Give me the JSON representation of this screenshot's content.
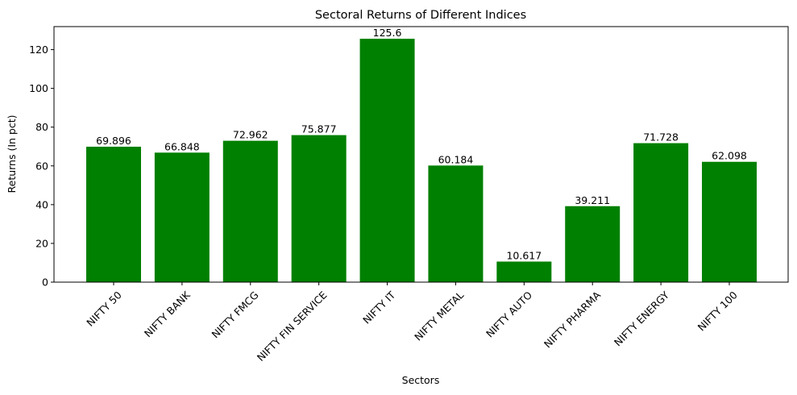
{
  "chart_data": {
    "type": "bar",
    "title": "Sectoral Returns of Different Indices",
    "xlabel": "Sectors",
    "ylabel": "Returns (In pct)",
    "categories": [
      "NIFTY 50",
      "NIFTY BANK",
      "NIFTY FMCG",
      "NIFTY FIN SERVICE",
      "NIFTY IT",
      "NIFTY METAL",
      "NIFTY AUTO",
      "NIFTY PHARMA",
      "NIFTY ENERGY",
      "NIFTY 100"
    ],
    "values": [
      69.896,
      66.848,
      72.962,
      75.877,
      125.6,
      60.184,
      10.617,
      39.211,
      71.728,
      62.098
    ],
    "data_labels": [
      "69.896",
      "66.848",
      "72.962",
      "75.877",
      "125.6",
      "60.184",
      "10.617",
      "39.211",
      "71.728",
      "62.098"
    ],
    "yticks": [
      0,
      20,
      40,
      60,
      80,
      100,
      120
    ],
    "ylim": [
      0,
      131.88
    ],
    "bar_color": "#008000",
    "grid": false,
    "legend": false
  }
}
